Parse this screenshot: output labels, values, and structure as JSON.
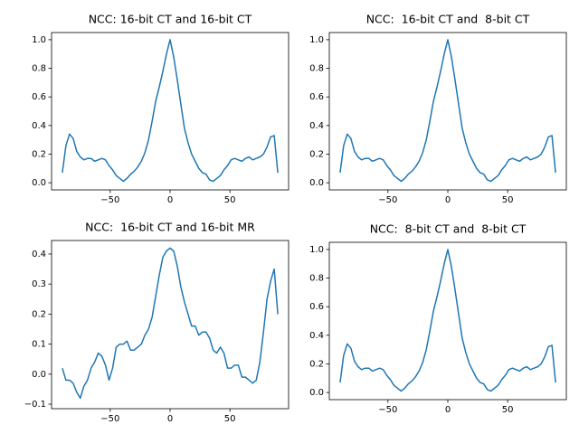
{
  "chart_data": [
    {
      "type": "line",
      "title": "NCC: 16-bit CT and 16-bit CT",
      "color": "#1f77b4",
      "x": [
        -90,
        -87,
        -84,
        -81,
        -78,
        -75,
        -72,
        -69,
        -66,
        -63,
        -60,
        -57,
        -54,
        -51,
        -48,
        -45,
        -42,
        -39,
        -36,
        -33,
        -30,
        -27,
        -24,
        -21,
        -18,
        -15,
        -12,
        -9,
        -6,
        -3,
        0,
        3,
        6,
        9,
        12,
        15,
        18,
        21,
        24,
        27,
        30,
        33,
        36,
        39,
        42,
        45,
        48,
        51,
        54,
        57,
        60,
        63,
        66,
        69,
        72,
        75,
        78,
        81,
        84,
        87,
        90
      ],
      "values": [
        0.07,
        0.26,
        0.34,
        0.31,
        0.22,
        0.18,
        0.16,
        0.17,
        0.17,
        0.15,
        0.16,
        0.17,
        0.16,
        0.12,
        0.09,
        0.05,
        0.03,
        0.01,
        0.03,
        0.06,
        0.08,
        0.11,
        0.15,
        0.21,
        0.3,
        0.43,
        0.57,
        0.67,
        0.78,
        0.9,
        1.0,
        0.88,
        0.72,
        0.55,
        0.38,
        0.28,
        0.2,
        0.15,
        0.1,
        0.07,
        0.06,
        0.02,
        0.01,
        0.03,
        0.05,
        0.09,
        0.12,
        0.16,
        0.17,
        0.16,
        0.15,
        0.17,
        0.18,
        0.16,
        0.17,
        0.18,
        0.2,
        0.25,
        0.32,
        0.33,
        0.07
      ],
      "xlim": [
        -99,
        99
      ],
      "xticks": [
        {
          "value": -50,
          "label": "−50"
        },
        0,
        50
      ],
      "ylim": [
        -0.05,
        1.05
      ],
      "yticks": [
        {
          "value": 0,
          "label": "0.0"
        },
        0.2,
        0.4,
        0.6,
        0.8,
        {
          "value": 1,
          "label": "1.0"
        }
      ]
    },
    {
      "type": "line",
      "title": "NCC:  16-bit CT and  8-bit CT",
      "color": "#1f77b4",
      "x": [
        -90,
        -87,
        -84,
        -81,
        -78,
        -75,
        -72,
        -69,
        -66,
        -63,
        -60,
        -57,
        -54,
        -51,
        -48,
        -45,
        -42,
        -39,
        -36,
        -33,
        -30,
        -27,
        -24,
        -21,
        -18,
        -15,
        -12,
        -9,
        -6,
        -3,
        0,
        3,
        6,
        9,
        12,
        15,
        18,
        21,
        24,
        27,
        30,
        33,
        36,
        39,
        42,
        45,
        48,
        51,
        54,
        57,
        60,
        63,
        66,
        69,
        72,
        75,
        78,
        81,
        84,
        87,
        90
      ],
      "values": [
        0.07,
        0.26,
        0.34,
        0.31,
        0.22,
        0.18,
        0.16,
        0.17,
        0.17,
        0.15,
        0.16,
        0.17,
        0.16,
        0.12,
        0.09,
        0.05,
        0.03,
        0.01,
        0.03,
        0.06,
        0.08,
        0.11,
        0.15,
        0.21,
        0.3,
        0.43,
        0.57,
        0.67,
        0.78,
        0.9,
        1.0,
        0.88,
        0.72,
        0.55,
        0.38,
        0.28,
        0.2,
        0.15,
        0.1,
        0.07,
        0.06,
        0.02,
        0.01,
        0.03,
        0.05,
        0.09,
        0.12,
        0.16,
        0.17,
        0.16,
        0.15,
        0.17,
        0.18,
        0.16,
        0.17,
        0.18,
        0.2,
        0.25,
        0.32,
        0.33,
        0.07
      ],
      "xlim": [
        -99,
        99
      ],
      "xticks": [
        {
          "value": -50,
          "label": "−50"
        },
        0,
        50
      ],
      "ylim": [
        -0.05,
        1.05
      ],
      "yticks": [
        {
          "value": 0,
          "label": "0.0"
        },
        0.2,
        0.4,
        0.6,
        0.8,
        {
          "value": 1,
          "label": "1.0"
        }
      ]
    },
    {
      "type": "line",
      "title": "NCC:  16-bit CT and 16-bit MR",
      "color": "#1f77b4",
      "x": [
        -90,
        -87,
        -84,
        -81,
        -78,
        -75,
        -72,
        -69,
        -66,
        -63,
        -60,
        -57,
        -54,
        -51,
        -48,
        -45,
        -42,
        -39,
        -36,
        -33,
        -30,
        -27,
        -24,
        -21,
        -18,
        -15,
        -12,
        -9,
        -6,
        -3,
        0,
        3,
        6,
        9,
        12,
        15,
        18,
        21,
        24,
        27,
        30,
        33,
        36,
        39,
        42,
        45,
        48,
        51,
        54,
        57,
        60,
        63,
        66,
        69,
        72,
        75,
        78,
        81,
        84,
        87,
        90
      ],
      "values": [
        0.02,
        -0.02,
        -0.02,
        -0.03,
        -0.06,
        -0.08,
        -0.04,
        -0.02,
        0.02,
        0.04,
        0.07,
        0.06,
        0.03,
        -0.02,
        0.02,
        0.09,
        0.1,
        0.1,
        0.11,
        0.08,
        0.08,
        0.09,
        0.1,
        0.13,
        0.15,
        0.19,
        0.26,
        0.33,
        0.39,
        0.41,
        0.42,
        0.41,
        0.36,
        0.29,
        0.24,
        0.2,
        0.16,
        0.16,
        0.13,
        0.14,
        0.14,
        0.12,
        0.08,
        0.07,
        0.09,
        0.07,
        0.02,
        0.02,
        0.03,
        0.03,
        -0.01,
        -0.01,
        -0.02,
        -0.03,
        -0.02,
        0.04,
        0.14,
        0.25,
        0.31,
        0.35,
        0.2
      ],
      "xlim": [
        -99,
        99
      ],
      "xticks": [
        {
          "value": -50,
          "label": "−50"
        },
        0,
        50
      ],
      "ylim": [
        -0.115,
        0.445
      ],
      "yticks": [
        {
          "value": -0.1,
          "label": "−0.1"
        },
        {
          "value": 0,
          "label": "0.0"
        },
        0.1,
        0.2,
        0.3,
        0.4
      ]
    },
    {
      "type": "line",
      "title": "NCC:  8-bit CT and  8-bit CT",
      "color": "#1f77b4",
      "x": [
        -90,
        -87,
        -84,
        -81,
        -78,
        -75,
        -72,
        -69,
        -66,
        -63,
        -60,
        -57,
        -54,
        -51,
        -48,
        -45,
        -42,
        -39,
        -36,
        -33,
        -30,
        -27,
        -24,
        -21,
        -18,
        -15,
        -12,
        -9,
        -6,
        -3,
        0,
        3,
        6,
        9,
        12,
        15,
        18,
        21,
        24,
        27,
        30,
        33,
        36,
        39,
        42,
        45,
        48,
        51,
        54,
        57,
        60,
        63,
        66,
        69,
        72,
        75,
        78,
        81,
        84,
        87,
        90
      ],
      "values": [
        0.07,
        0.26,
        0.34,
        0.31,
        0.22,
        0.18,
        0.16,
        0.17,
        0.17,
        0.15,
        0.16,
        0.17,
        0.16,
        0.12,
        0.09,
        0.05,
        0.03,
        0.01,
        0.03,
        0.06,
        0.08,
        0.11,
        0.15,
        0.21,
        0.3,
        0.43,
        0.57,
        0.67,
        0.78,
        0.9,
        1.0,
        0.88,
        0.72,
        0.55,
        0.38,
        0.28,
        0.2,
        0.15,
        0.1,
        0.07,
        0.06,
        0.02,
        0.01,
        0.03,
        0.05,
        0.09,
        0.12,
        0.16,
        0.17,
        0.16,
        0.15,
        0.17,
        0.18,
        0.16,
        0.17,
        0.18,
        0.2,
        0.25,
        0.32,
        0.33,
        0.07
      ],
      "xlim": [
        -99,
        99
      ],
      "xticks": [
        {
          "value": -50,
          "label": "−50"
        },
        0,
        50
      ],
      "ylim": [
        -0.05,
        1.05
      ],
      "yticks": [
        {
          "value": 0,
          "label": "0.0"
        },
        0.2,
        0.4,
        0.6,
        0.8,
        {
          "value": 1,
          "label": "1.0"
        }
      ]
    }
  ]
}
